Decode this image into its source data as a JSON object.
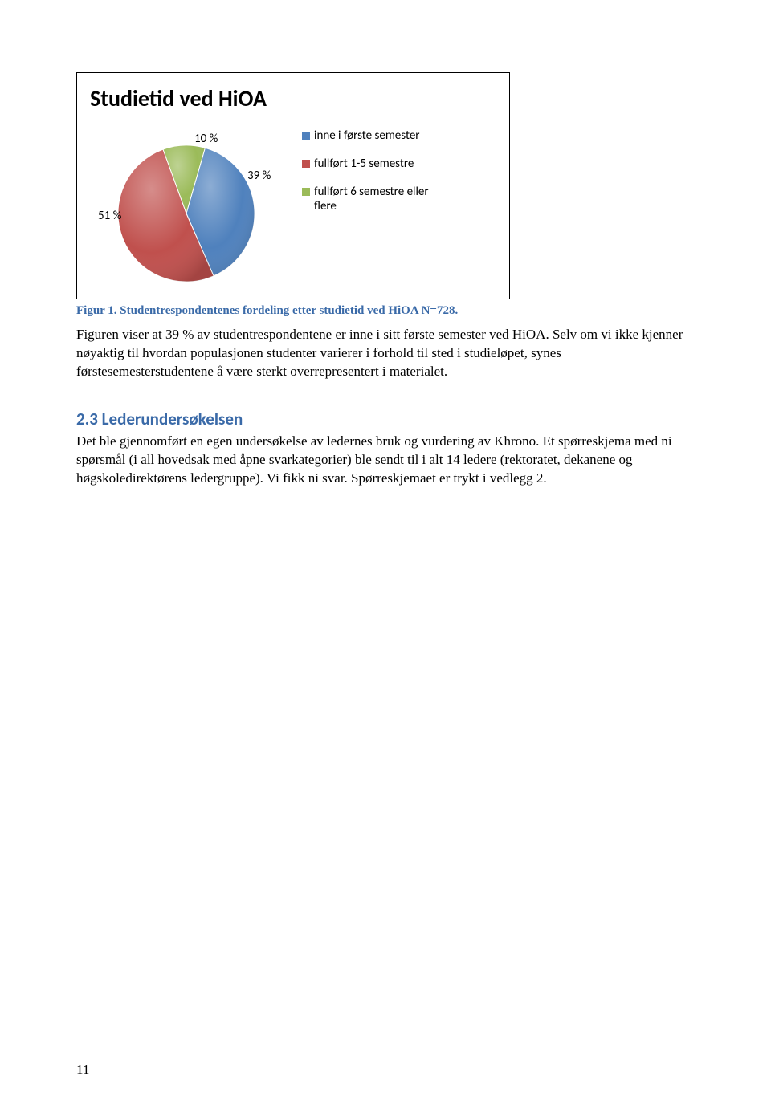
{
  "chart": {
    "type": "pie",
    "title": "Studietid ved HiOA",
    "slices": [
      {
        "label": "inne i første semester",
        "value": 39,
        "pct_label": "39 %",
        "color": "#4f81bd"
      },
      {
        "label": "fullført 1-5 semestre",
        "value": 51,
        "pct_label": "51 %",
        "color": "#c0504d"
      },
      {
        "label": "fullført 6 semestre eller flere",
        "value": 10,
        "pct_label": "10 %",
        "color": "#9bbb59"
      }
    ],
    "title_fontsize": 28,
    "label_fontsize": 15,
    "legend_fontsize": 15,
    "background_color": "#ffffff",
    "border_color": "#000000"
  },
  "caption": "Figur 1. Studentrespondentenes fordeling etter studietid ved HiOA N=728.",
  "paragraph1": "Figuren viser at 39 % av studentrespondentene er inne i sitt første semester ved HiOA. Selv om vi ikke kjenner nøyaktig til hvordan populasjonen studenter varierer i forhold til sted i studieløpet, synes førstesemesterstudentene å være sterkt overrepresentert i materialet.",
  "section": {
    "heading": "2.3   Lederundersøkelsen",
    "body": "Det ble gjennomført en egen undersøkelse av ledernes bruk og vurdering av Khrono. Et spørreskjema med ni spørsmål (i all hovedsak med åpne svarkategorier) ble sendt til i alt 14 ledere  (rektoratet, dekanene og høgskoledirektørens ledergruppe). Vi fikk ni svar. Spørreskjemaet er trykt i vedlegg 2."
  },
  "page_number": "11",
  "colors": {
    "heading_blue": "#3a6aa8",
    "text_black": "#000000"
  }
}
